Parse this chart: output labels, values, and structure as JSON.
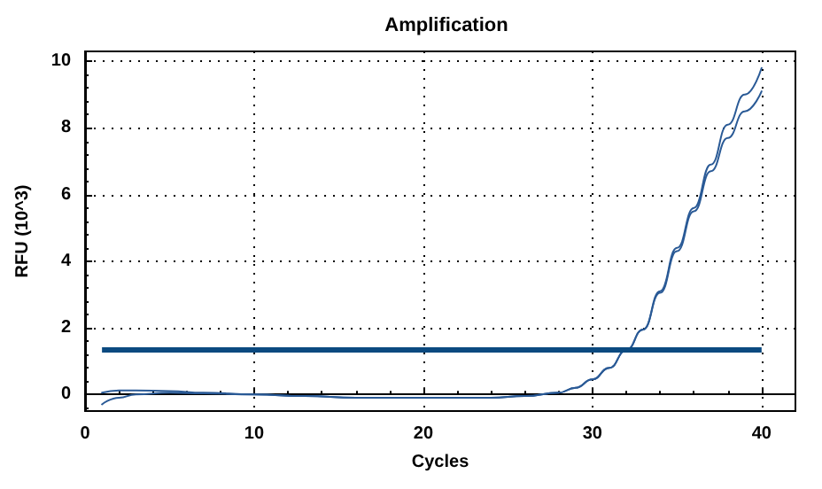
{
  "chart_data": {
    "type": "line",
    "title": "Amplification",
    "xlabel": "Cycles",
    "ylabel": "RFU (10^3)",
    "x": [
      1,
      2,
      3,
      5,
      7,
      10,
      13,
      16,
      20,
      24,
      26,
      28,
      29,
      30,
      31,
      32,
      33,
      34,
      35,
      36,
      37,
      38,
      39,
      40
    ],
    "series": [
      {
        "color": "#2a5a96",
        "values": [
          0.05,
          0.12,
          0.12,
          0.1,
          0.05,
          0,
          -0.05,
          -0.1,
          -0.1,
          -0.1,
          -0.05,
          0.05,
          0.2,
          0.45,
          0.8,
          1.33,
          1.95,
          3.1,
          4.4,
          5.6,
          6.9,
          8.1,
          9.0,
          9.8
        ]
      },
      {
        "color": "#2a5a96",
        "values": [
          -0.3,
          -0.1,
          0,
          0.05,
          0.03,
          0,
          -0.05,
          -0.1,
          -0.1,
          -0.1,
          -0.05,
          0.05,
          0.2,
          0.45,
          0.8,
          1.33,
          1.95,
          3.05,
          4.3,
          5.5,
          6.7,
          7.7,
          8.5,
          9.1
        ]
      }
    ],
    "ref_lines": [
      {
        "axis": "y",
        "value": 1.33,
        "color": "#0b4a80"
      }
    ],
    "xlim": [
      0,
      42
    ],
    "xticks": [
      0,
      10,
      20,
      30,
      40
    ],
    "ylim": [
      -0.5,
      10.3
    ],
    "yticks": [
      0,
      2,
      4,
      6,
      8,
      10
    ],
    "grid": true,
    "marker": "none",
    "line_style": "solid"
  }
}
